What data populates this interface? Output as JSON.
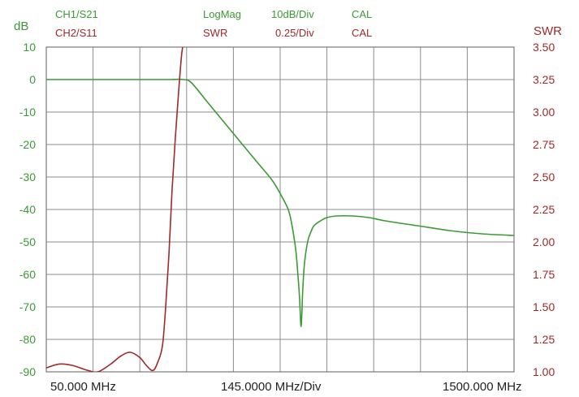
{
  "header": {
    "ch1": {
      "name": "CH1/S21",
      "format": "LogMag",
      "scale": "10dB/Div",
      "cal": "CAL"
    },
    "ch2": {
      "name": "CH2/S11",
      "format": "SWR",
      "scale": "0.25/Div",
      "cal": "CAL"
    }
  },
  "colors": {
    "ch1": "#3c9a35",
    "ch2": "#a0292a",
    "grid": "#8c8c8c"
  },
  "chart_data": {
    "type": "line",
    "grid": true,
    "x_labels": {
      "start": "50.000 MHz",
      "center": "145.0000 MHz/Div",
      "stop": "1500.000 MHz"
    },
    "xlim": [
      50,
      1500
    ],
    "left_axis": {
      "unit": "dB",
      "lim": [
        -90,
        10
      ],
      "ticks": [
        "10",
        "0",
        "-10",
        "-20",
        "-30",
        "-40",
        "-50",
        "-60",
        "-70",
        "-80",
        "-90"
      ]
    },
    "right_axis": {
      "unit": "SWR",
      "lim": [
        1.0,
        3.5
      ],
      "ticks": [
        "3.50",
        "3.25",
        "3.00",
        "2.75",
        "2.50",
        "2.25",
        "2.00",
        "1.75",
        "1.50",
        "1.25",
        "1.00"
      ]
    },
    "series": [
      {
        "name": "CH1/S21",
        "axis": "left",
        "x": [
          50,
          150,
          250,
          350,
          430,
          475,
          500,
          550,
          600,
          650,
          700,
          750,
          780,
          800,
          810,
          820,
          825,
          830,
          835,
          840,
          845,
          850,
          860,
          870,
          880,
          900,
          920,
          950,
          1000,
          1050,
          1100,
          1200,
          1300,
          1400,
          1500
        ],
        "y": [
          0,
          0,
          0,
          0,
          0,
          0,
          -1,
          -7,
          -13,
          -19,
          -25,
          -31,
          -36,
          -40,
          -44,
          -50,
          -54,
          -60,
          -67,
          -76,
          -65,
          -57,
          -50,
          -47,
          -45,
          -43.5,
          -42.5,
          -42,
          -42,
          -42.5,
          -43.5,
          -45,
          -46.5,
          -47.5,
          -48
        ]
      },
      {
        "name": "CH2/S11",
        "axis": "right",
        "x": [
          50,
          90,
          130,
          180,
          210,
          250,
          280,
          310,
          340,
          360,
          380,
          395,
          410,
          420,
          430,
          440,
          450,
          460,
          470,
          480
        ],
        "y": [
          1.03,
          1.06,
          1.05,
          1.01,
          1.0,
          1.06,
          1.12,
          1.15,
          1.11,
          1.05,
          1.01,
          1.07,
          1.2,
          1.5,
          1.9,
          2.4,
          2.8,
          3.15,
          3.45,
          3.6
        ]
      }
    ]
  }
}
